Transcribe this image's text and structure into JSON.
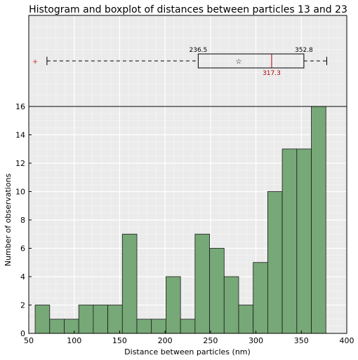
{
  "chart_data": {
    "type": "bar",
    "title": "Histogram and boxplot of distances between particles 13 and 23",
    "xlabel": "Distance between particles (nm)",
    "ylabel": "Number of observations",
    "xlim": [
      50,
      400
    ],
    "ylim": [
      0,
      16
    ],
    "xticks": [
      50,
      100,
      150,
      200,
      250,
      300,
      350,
      400
    ],
    "yticks": [
      0,
      2,
      4,
      6,
      8,
      10,
      12,
      14,
      16
    ],
    "xtick_labels": [
      "50",
      "100",
      "150",
      "200",
      "250",
      "300",
      "350",
      "400"
    ],
    "ytick_labels": [
      "0",
      "2",
      "4",
      "6",
      "8",
      "10",
      "12",
      "14",
      "16"
    ],
    "grid": true,
    "bins": {
      "edges": [
        57,
        73,
        89,
        105,
        121,
        137,
        153,
        169,
        185,
        201,
        217,
        233,
        249,
        265,
        281,
        297,
        313,
        329,
        345,
        361,
        377
      ],
      "counts": [
        2,
        1,
        1,
        2,
        2,
        2,
        7,
        1,
        1,
        4,
        1,
        7,
        6,
        4,
        2,
        5,
        10,
        13,
        13,
        16
      ]
    },
    "boxplot": {
      "whisker_low": 70,
      "q1": 236.5,
      "median": 317.3,
      "q3": 352.8,
      "whisker_high": 378,
      "mean": 281,
      "outliers": [
        57
      ],
      "q1_label": "236.5",
      "median_label": "317.3",
      "q3_label": "352.8"
    },
    "colors": {
      "bar_fill": "#77a877",
      "bar_edge": "#1a1a1a",
      "panel_bg": "#ebebeb",
      "grid": "#ffffff",
      "median": "#aa0000",
      "outlier": "#cc3333"
    }
  }
}
